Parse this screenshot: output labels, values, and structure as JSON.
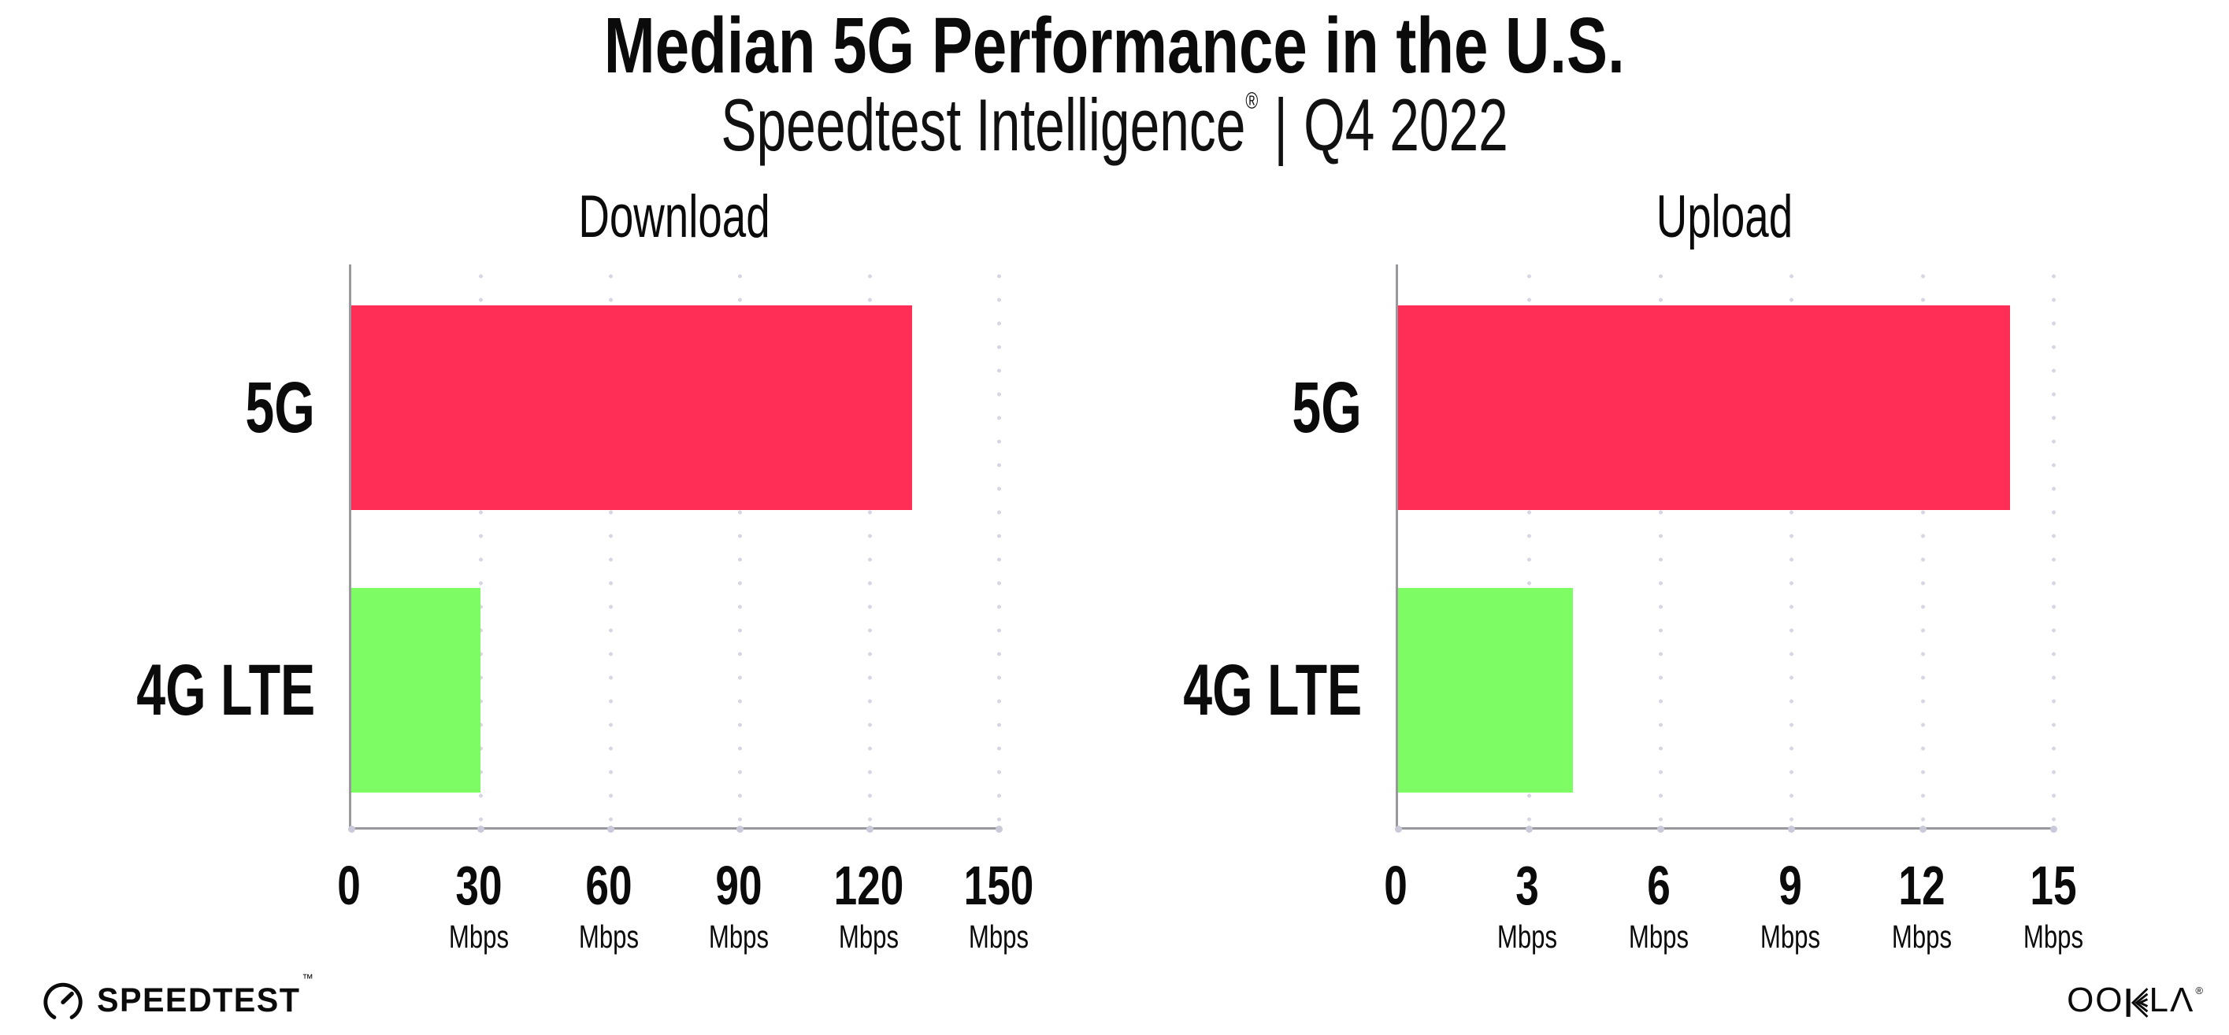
{
  "title": "Median 5G Performance in the U.S.",
  "subtitle": {
    "product": "Speedtest Intelligence",
    "registered_mark": "®",
    "divider": "|",
    "period": "Q4 2022"
  },
  "colors": {
    "bar_5g": "#FF2E56",
    "bar_4g_lte": "#7DFC64",
    "bar_colors": [
      "#FF2E56",
      "#7DFC64"
    ],
    "gridline": "#D6D6E4",
    "axis": "#98989D",
    "text": "#0B0B0B",
    "background": "#FFFFFF"
  },
  "chart_data": [
    {
      "type": "bar",
      "orientation": "horizontal",
      "title": "Download",
      "categories": [
        "5G",
        "4G LTE"
      ],
      "values": [
        130,
        30
      ],
      "unit": "Mbps",
      "xlabel": "",
      "ylabel": "",
      "xlim": [
        0,
        150
      ],
      "grid": "vertical-dotted",
      "legend": "none",
      "xticks": [
        {
          "label": "0",
          "unit": ""
        },
        {
          "label": "30",
          "unit": "Mbps"
        },
        {
          "label": "60",
          "unit": "Mbps"
        },
        {
          "label": "90",
          "unit": "Mbps"
        },
        {
          "label": "120",
          "unit": "Mbps"
        },
        {
          "label": "150",
          "unit": "Mbps"
        }
      ]
    },
    {
      "type": "bar",
      "orientation": "horizontal",
      "title": "Upload",
      "categories": [
        "5G",
        "4G LTE"
      ],
      "values": [
        14,
        4
      ],
      "unit": "Mbps",
      "xlabel": "",
      "ylabel": "",
      "xlim": [
        0,
        15
      ],
      "grid": "vertical-dotted",
      "legend": "none",
      "xticks": [
        {
          "label": "0",
          "unit": ""
        },
        {
          "label": "3",
          "unit": "Mbps"
        },
        {
          "label": "6",
          "unit": "Mbps"
        },
        {
          "label": "9",
          "unit": "Mbps"
        },
        {
          "label": "12",
          "unit": "Mbps"
        },
        {
          "label": "15",
          "unit": "Mbps"
        }
      ]
    }
  ],
  "footer": {
    "speedtest_wordmark": "SPEEDTEST",
    "speedtest_trademark": "™",
    "ookla_wordmark": "OOKLA",
    "ookla_display_pre": "OO",
    "ookla_display_post": "LΛ",
    "ookla_registered": "®"
  }
}
